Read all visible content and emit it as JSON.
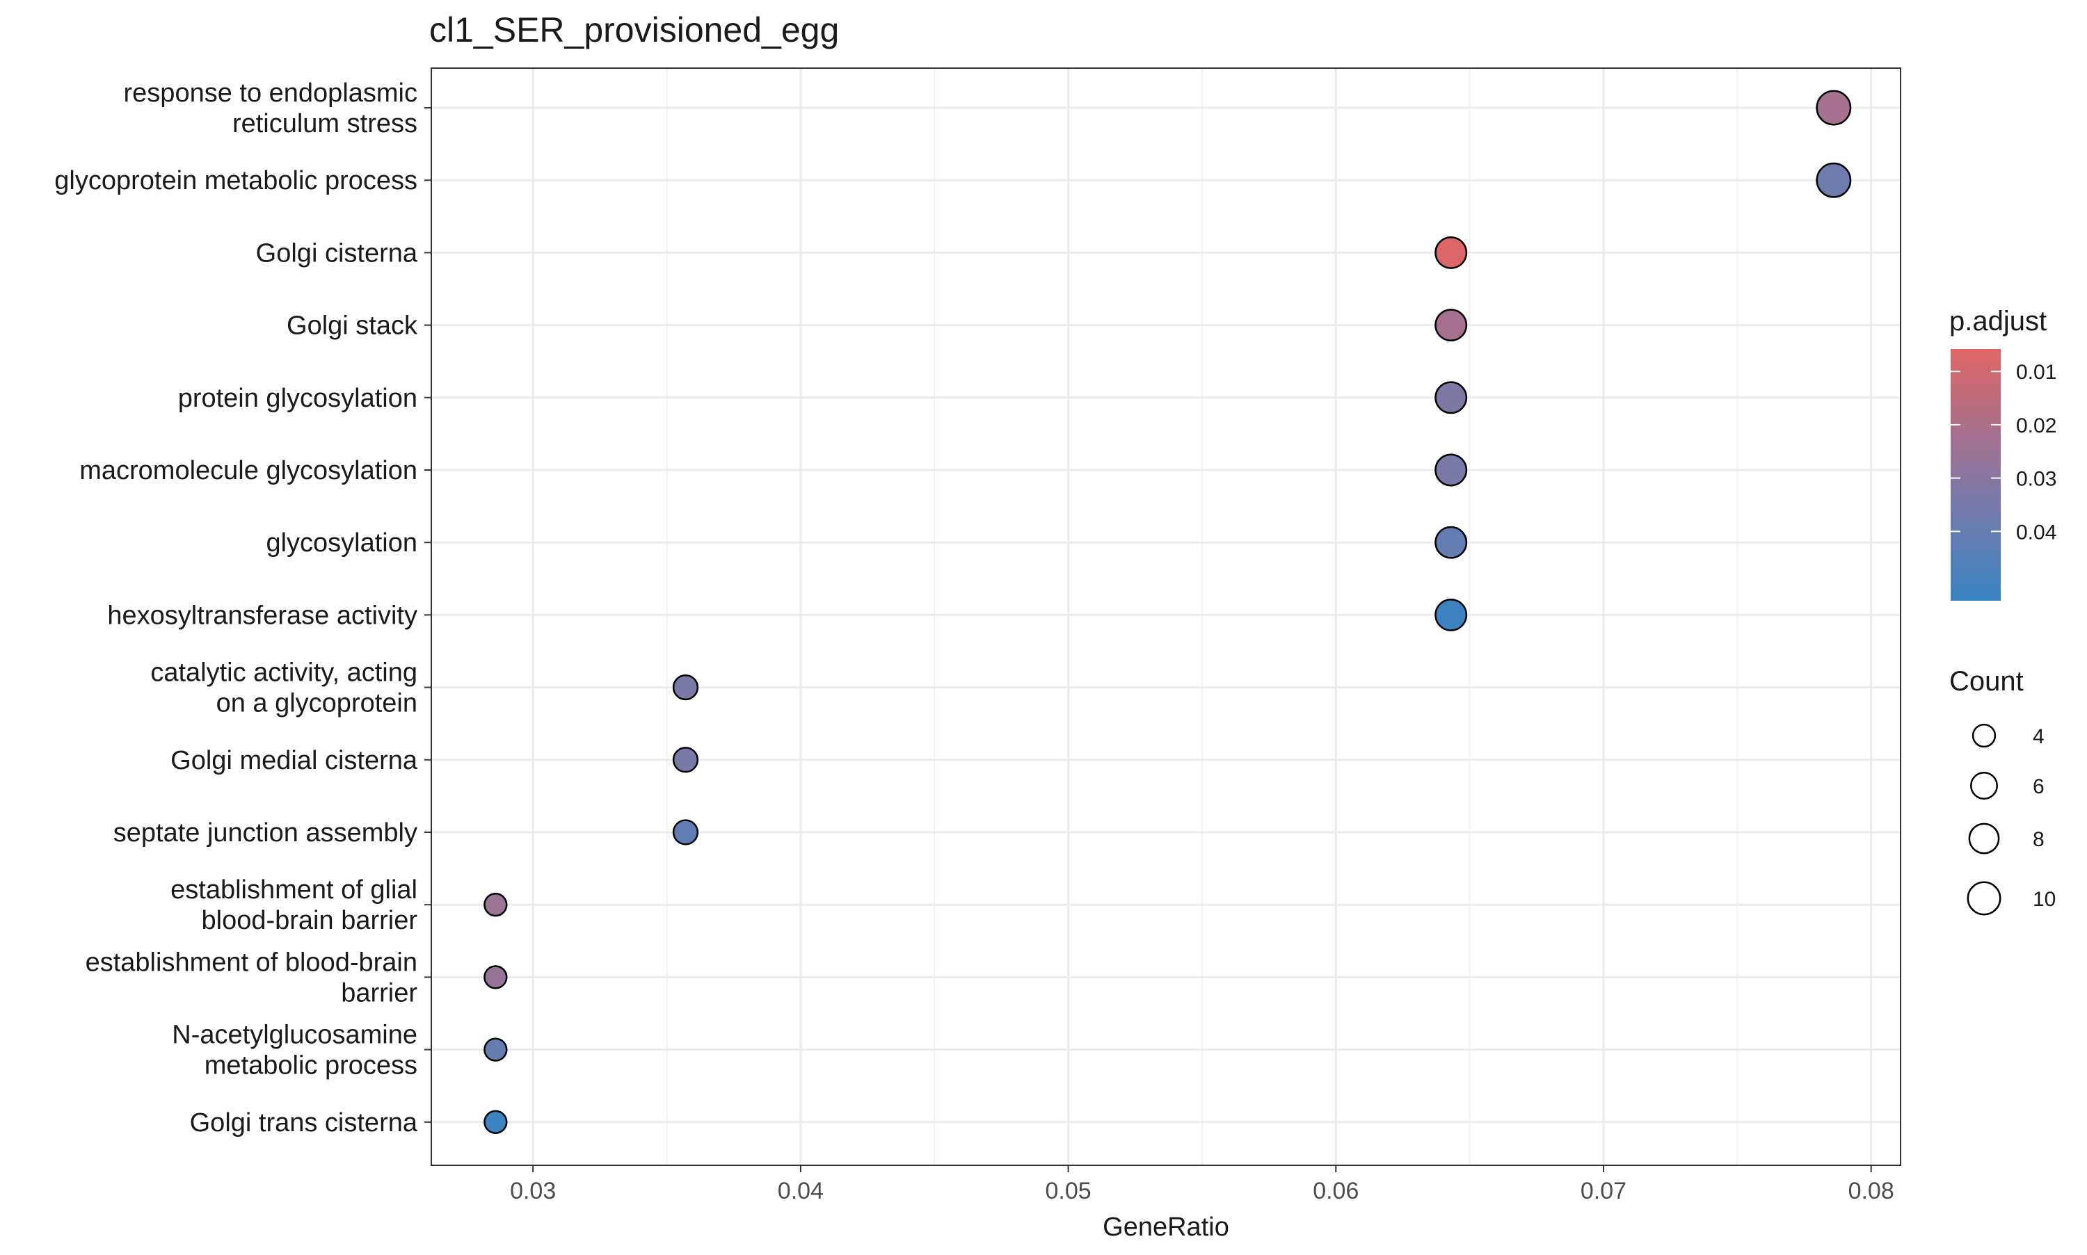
{
  "chart_data": {
    "type": "scatter",
    "title": "cl1_SER_provisioned_egg",
    "xlabel": "GeneRatio",
    "ylabel": "",
    "xlim": [
      0.0262,
      0.0811
    ],
    "x_ticks": [
      "0.03",
      "0.04",
      "0.05",
      "0.06",
      "0.07",
      "0.08"
    ],
    "x_tick_values": [
      0.03,
      0.04,
      0.05,
      0.06,
      0.07,
      0.08
    ],
    "grid": true,
    "categories": [
      [
        "response to endoplasmic",
        "reticulum stress"
      ],
      [
        "glycoprotein metabolic process"
      ],
      [
        "Golgi cisterna"
      ],
      [
        "Golgi stack"
      ],
      [
        "protein glycosylation"
      ],
      [
        "macromolecule glycosylation"
      ],
      [
        "glycosylation"
      ],
      [
        "hexosyltransferase activity"
      ],
      [
        "catalytic activity, acting",
        "on a glycoprotein"
      ],
      [
        "Golgi medial cisterna"
      ],
      [
        "septate junction assembly"
      ],
      [
        "establishment of glial",
        "blood-brain barrier"
      ],
      [
        "establishment of blood-brain",
        "barrier"
      ],
      [
        "N-acetylglucosamine",
        "metabolic process"
      ],
      [
        "Golgi trans cisterna"
      ]
    ],
    "points": [
      {
        "gene_ratio": 0.0786,
        "count": 11,
        "p_adjust": 0.022
      },
      {
        "gene_ratio": 0.0786,
        "count": 11,
        "p_adjust": 0.038
      },
      {
        "gene_ratio": 0.0643,
        "count": 9,
        "p_adjust": 0.007
      },
      {
        "gene_ratio": 0.0643,
        "count": 9,
        "p_adjust": 0.022
      },
      {
        "gene_ratio": 0.0643,
        "count": 9,
        "p_adjust": 0.033
      },
      {
        "gene_ratio": 0.0643,
        "count": 9,
        "p_adjust": 0.034
      },
      {
        "gene_ratio": 0.0643,
        "count": 9,
        "p_adjust": 0.041
      },
      {
        "gene_ratio": 0.0643,
        "count": 9,
        "p_adjust": 0.052
      },
      {
        "gene_ratio": 0.0357,
        "count": 5,
        "p_adjust": 0.034
      },
      {
        "gene_ratio": 0.0357,
        "count": 5,
        "p_adjust": 0.034
      },
      {
        "gene_ratio": 0.0357,
        "count": 5,
        "p_adjust": 0.042
      },
      {
        "gene_ratio": 0.0286,
        "count": 4,
        "p_adjust": 0.025
      },
      {
        "gene_ratio": 0.0286,
        "count": 4,
        "p_adjust": 0.026
      },
      {
        "gene_ratio": 0.0286,
        "count": 4,
        "p_adjust": 0.04
      },
      {
        "gene_ratio": 0.0286,
        "count": 4,
        "p_adjust": 0.052
      }
    ],
    "color_legend": {
      "title": "p.adjust",
      "ticks": [
        "0.01",
        "0.02",
        "0.03",
        "0.04"
      ],
      "tick_values": [
        0.01,
        0.02,
        0.03,
        0.04
      ],
      "range": [
        0.0058,
        0.053
      ],
      "low_color": "#e06666",
      "high_color": "#3a84c4"
    },
    "size_legend": {
      "title": "Count",
      "ticks": [
        "4",
        "6",
        "8",
        "10"
      ],
      "tick_values": [
        4,
        6,
        8,
        10
      ]
    },
    "legend_position": "right"
  }
}
